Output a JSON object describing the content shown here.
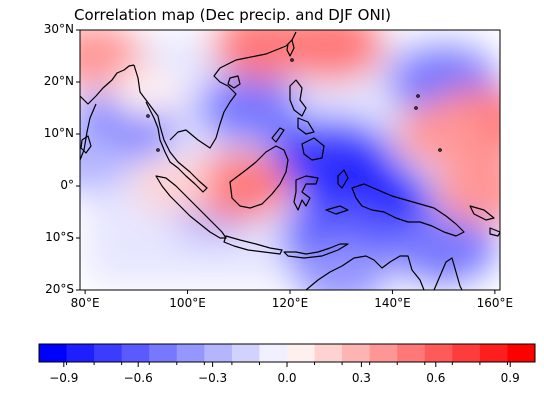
{
  "title": "Correlation map (Dec precip. and DJF ONI)",
  "map": {
    "lon_range": [
      79,
      161
    ],
    "lat_range": [
      -20,
      30
    ],
    "lat_ticks": [
      {
        "value": 30,
        "label": "30°N"
      },
      {
        "value": 20,
        "label": "20°N"
      },
      {
        "value": 10,
        "label": "10°N"
      },
      {
        "value": 0,
        "label": "0°"
      },
      {
        "value": -10,
        "label": "10°S"
      },
      {
        "value": -20,
        "label": "20°S"
      }
    ],
    "lon_ticks": [
      {
        "value": 80,
        "label": "80°E"
      },
      {
        "value": 100,
        "label": "100°E"
      },
      {
        "value": 120,
        "label": "120°E"
      },
      {
        "value": 140,
        "label": "140°E"
      },
      {
        "value": 160,
        "label": "160°E"
      }
    ]
  },
  "colorbar": {
    "min": -1.0,
    "max": 1.0,
    "colors": [
      "#0000ff",
      "#1e1eff",
      "#3c3cff",
      "#5a5aff",
      "#7878ff",
      "#9696ff",
      "#b4b4ff",
      "#d2d2ff",
      "#f0f0ff",
      "#fff0f0",
      "#ffd2d2",
      "#ffb4b4",
      "#ff9696",
      "#ff7878",
      "#ff5a5a",
      "#ff3c3c",
      "#ff1e1e",
      "#ff0000"
    ],
    "ticks": [
      {
        "value": -0.9,
        "label": "−0.9"
      },
      {
        "value": -0.6,
        "label": "−0.6"
      },
      {
        "value": -0.3,
        "label": "−0.3"
      },
      {
        "value": 0.0,
        "label": "0.0"
      },
      {
        "value": 0.3,
        "label": "0.3"
      },
      {
        "value": 0.6,
        "label": "0.6"
      },
      {
        "value": 0.9,
        "label": "0.9"
      }
    ]
  },
  "field_anomalies": [
    {
      "region": "philippine-sea-core",
      "lon": 128,
      "lat": 5,
      "value": -0.75
    },
    {
      "region": "banda-sea-core",
      "lon": 135,
      "lat": -3,
      "value": -0.8
    },
    {
      "region": "arafura-sea",
      "lon": 130,
      "lat": -10,
      "value": -0.65
    },
    {
      "region": "bay-of-bengal",
      "lon": 88,
      "lat": 12,
      "value": -0.45
    },
    {
      "region": "indian-ocean-west",
      "lon": 80,
      "lat": 5,
      "value": -0.3
    },
    {
      "region": "south-china-sea",
      "lon": 112,
      "lat": 15,
      "value": -0.45
    },
    {
      "region": "java-sea",
      "lon": 105,
      "lat": -5,
      "value": -0.25
    },
    {
      "region": "west-pacific-north",
      "lon": 150,
      "lat": 20,
      "value": -0.55
    },
    {
      "region": "west-pacific-south",
      "lon": 150,
      "lat": -12,
      "value": -0.5
    },
    {
      "region": "north-australia",
      "lon": 130,
      "lat": -17,
      "value": -0.35
    },
    {
      "region": "south-china",
      "lon": 115,
      "lat": 27,
      "value": 0.45
    },
    {
      "region": "taiwan-east",
      "lon": 128,
      "lat": 27,
      "value": 0.5
    },
    {
      "region": "pacific-band",
      "lon": 157,
      "lat": 12,
      "value": 0.5
    },
    {
      "region": "pacific-band-west",
      "lon": 150,
      "lat": 10,
      "value": 0.35
    },
    {
      "region": "borneo-sw",
      "lon": 110,
      "lat": 0,
      "value": 0.45
    },
    {
      "region": "sumatra-west",
      "lon": 97,
      "lat": 0,
      "value": 0.15
    },
    {
      "region": "indian-ocean-nw",
      "lon": 82,
      "lat": 25,
      "value": 0.35
    },
    {
      "region": "equatorial-pacific-east",
      "lon": 158,
      "lat": -1,
      "value": 0.4
    },
    {
      "region": "bay-of-bengal-north",
      "lon": 92,
      "lat": 18,
      "value": 0.05
    }
  ]
}
